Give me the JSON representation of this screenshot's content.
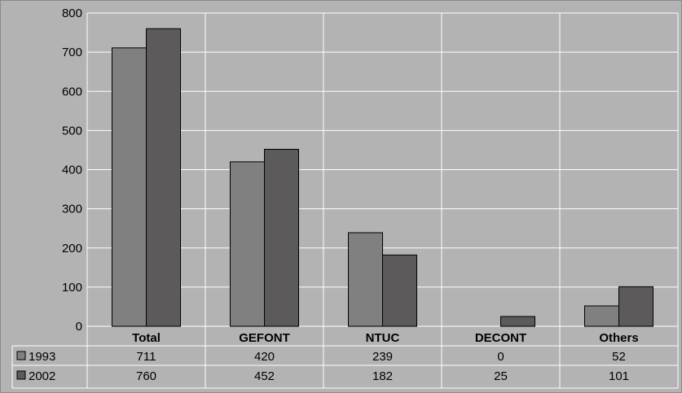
{
  "chart_data": {
    "type": "bar",
    "categories": [
      "Total",
      "GEFONT",
      "NTUC",
      "DECONT",
      "Others"
    ],
    "series": [
      {
        "name": "1993",
        "values": [
          711,
          420,
          239,
          0,
          52
        ],
        "color": "#808080"
      },
      {
        "name": "2002",
        "values": [
          760,
          452,
          182,
          25,
          101
        ],
        "color": "#5c5a5b"
      }
    ],
    "ylim": [
      0,
      800
    ],
    "yticks": [
      0,
      100,
      200,
      300,
      400,
      500,
      600,
      700,
      800
    ],
    "grid": true,
    "legend": "data-table-below",
    "colors": {
      "background": "#b3b3b3",
      "grid": "#ffffff",
      "bar_outline": "#000000"
    }
  }
}
